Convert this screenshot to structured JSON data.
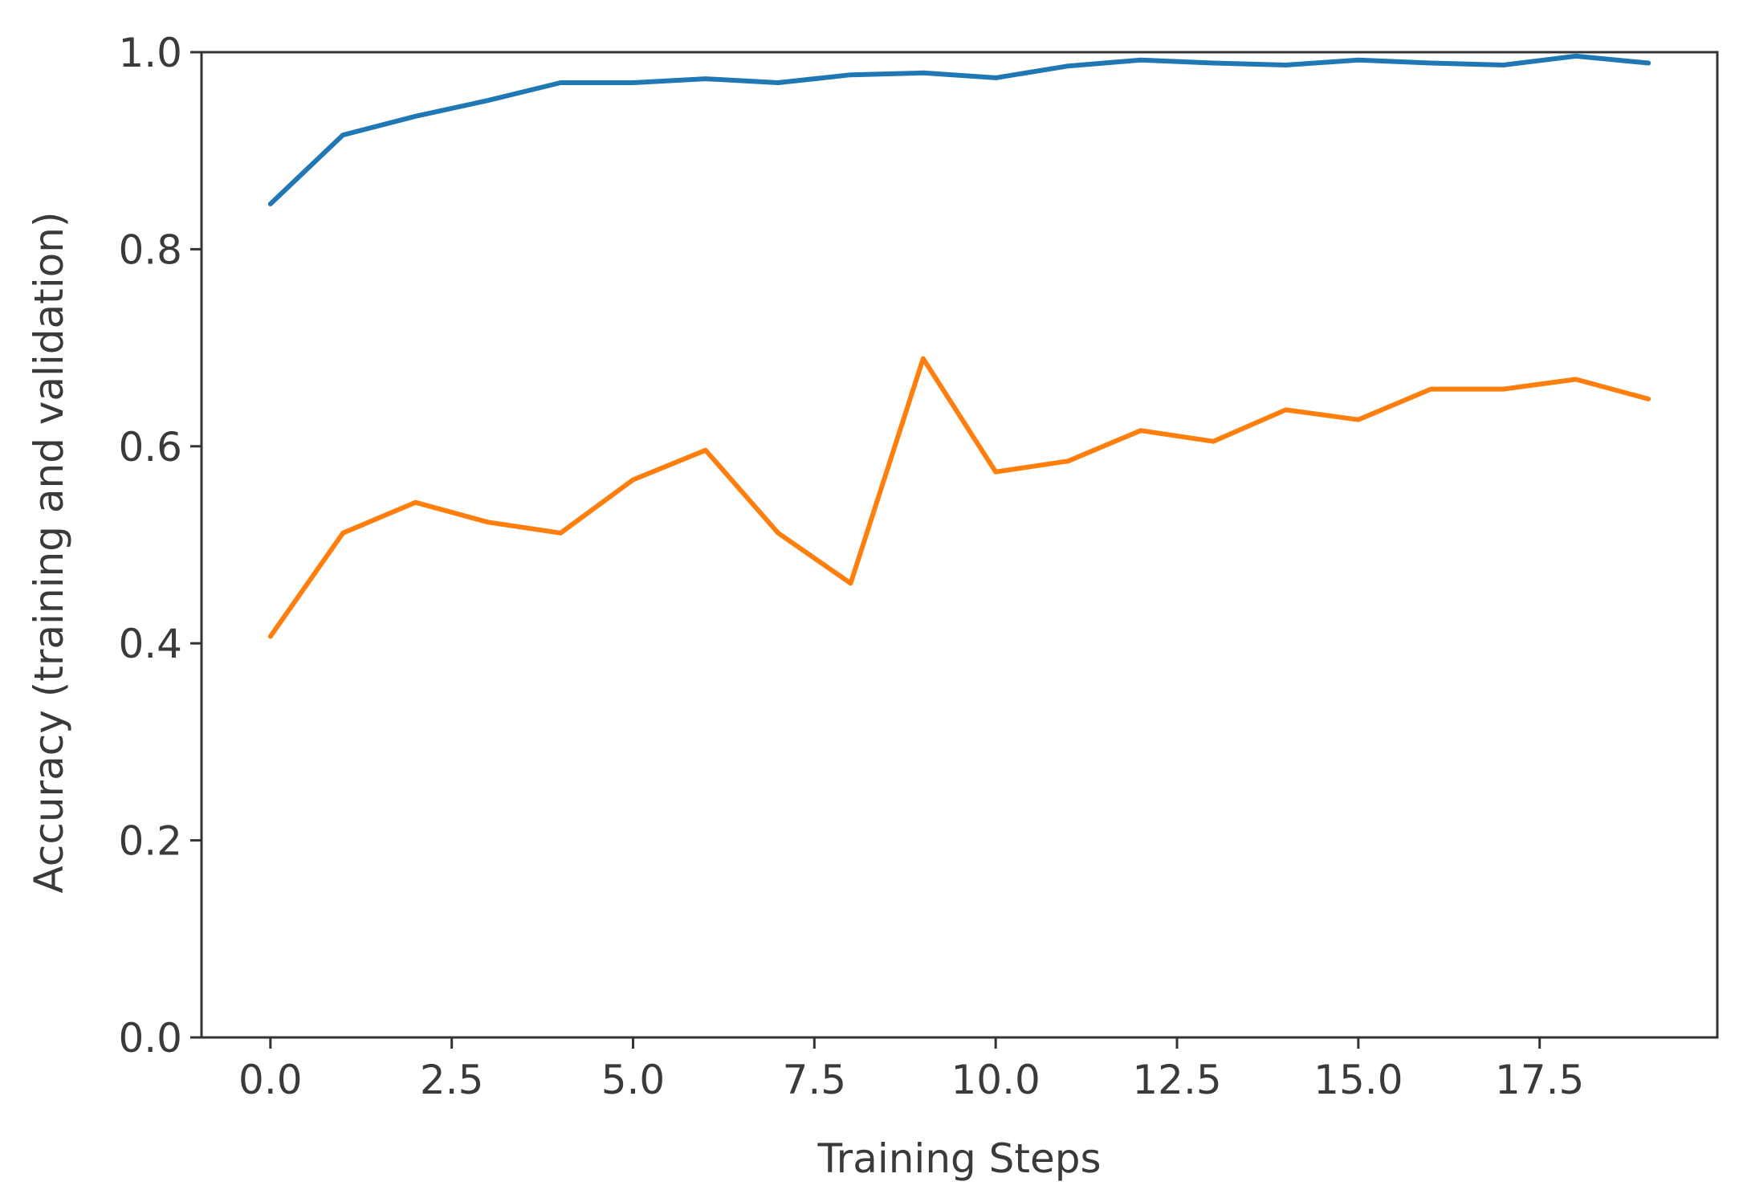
{
  "chart_data": {
    "type": "line",
    "title": "",
    "xlabel": "Training Steps",
    "ylabel": "Accuracy (training and validation)",
    "xlim": [
      -0.95,
      19.95
    ],
    "ylim": [
      0.0,
      1.0
    ],
    "xticks": [
      0.0,
      2.5,
      5.0,
      7.5,
      10.0,
      12.5,
      15.0,
      17.5
    ],
    "xtick_labels": [
      "0.0",
      "2.5",
      "5.0",
      "7.5",
      "10.0",
      "12.5",
      "15.0",
      "17.5"
    ],
    "yticks": [
      0.0,
      0.2,
      0.4,
      0.6,
      0.8,
      1.0
    ],
    "ytick_labels": [
      "0.0",
      "0.2",
      "0.4",
      "0.6",
      "0.8",
      "1.0"
    ],
    "grid": false,
    "x": [
      0,
      1,
      2,
      3,
      4,
      5,
      6,
      7,
      8,
      9,
      10,
      11,
      12,
      13,
      14,
      15,
      16,
      17,
      18,
      19
    ],
    "series": [
      {
        "color": "#1f77b4",
        "values": [
          0.846,
          0.916,
          0.935,
          0.951,
          0.969,
          0.969,
          0.973,
          0.969,
          0.977,
          0.979,
          0.974,
          0.986,
          0.992,
          0.989,
          0.987,
          0.992,
          0.989,
          0.987,
          0.996,
          0.989
        ]
      },
      {
        "color": "#ff7f0e",
        "values": [
          0.407,
          0.512,
          0.543,
          0.523,
          0.512,
          0.566,
          0.596,
          0.512,
          0.461,
          0.689,
          0.574,
          0.585,
          0.616,
          0.605,
          0.637,
          0.627,
          0.658,
          0.658,
          0.668,
          0.648
        ]
      }
    ]
  }
}
